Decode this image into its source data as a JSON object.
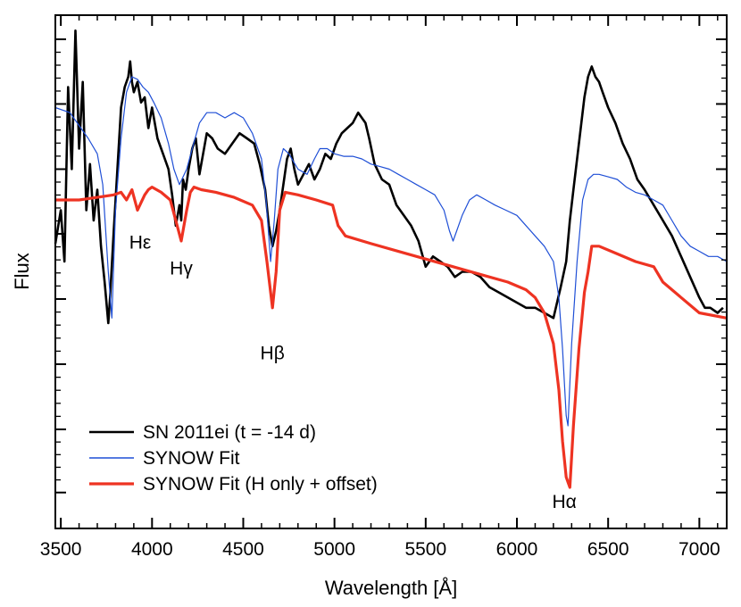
{
  "chart_data": {
    "type": "line",
    "xlabel": "Wavelength [Å]",
    "ylabel": "Flux",
    "xlim": [
      3470,
      7150
    ],
    "ylim": [
      0,
      1
    ],
    "xticks": [
      3500,
      4000,
      4500,
      5000,
      5500,
      6000,
      6500,
      7000
    ],
    "xtick_labels": [
      "3500",
      "4000",
      "4500",
      "5000",
      "5500",
      "6000",
      "6500",
      "7000"
    ],
    "yticks": [
      0.07,
      0.193,
      0.32,
      0.447,
      0.574,
      0.7,
      0.827,
      0.953
    ],
    "legend_position": "bottom-left",
    "series": [
      {
        "name": "SN 2011ei (t = -14 d)",
        "color": "#000000",
        "x": [
          3470,
          3500,
          3520,
          3540,
          3560,
          3580,
          3600,
          3620,
          3640,
          3660,
          3680,
          3700,
          3720,
          3740,
          3760,
          3770,
          3790,
          3810,
          3830,
          3850,
          3870,
          3880,
          3890,
          3900,
          3920,
          3940,
          3960,
          3980,
          4000,
          4030,
          4060,
          4090,
          4110,
          4130,
          4150,
          4160,
          4170,
          4185,
          4200,
          4220,
          4240,
          4260,
          4280,
          4300,
          4330,
          4360,
          4400,
          4440,
          4480,
          4520,
          4560,
          4590,
          4620,
          4640,
          4660,
          4680,
          4700,
          4720,
          4740,
          4760,
          4780,
          4800,
          4830,
          4860,
          4890,
          4920,
          4950,
          4980,
          5010,
          5040,
          5070,
          5100,
          5130,
          5150,
          5170,
          5190,
          5220,
          5260,
          5300,
          5340,
          5380,
          5420,
          5460,
          5500,
          5540,
          5580,
          5620,
          5660,
          5700,
          5750,
          5800,
          5850,
          5900,
          5950,
          6000,
          6050,
          6100,
          6150,
          6200,
          6240,
          6270,
          6290,
          6310,
          6330,
          6350,
          6370,
          6390,
          6410,
          6430,
          6450,
          6470,
          6500,
          6540,
          6580,
          6620,
          6660,
          6700,
          6750,
          6800,
          6850,
          6900,
          6950,
          7000,
          7030,
          7060,
          7100,
          7130
        ],
        "y": [
          0.555,
          0.62,
          0.52,
          0.86,
          0.7,
          0.97,
          0.74,
          0.87,
          0.62,
          0.71,
          0.6,
          0.66,
          0.55,
          0.48,
          0.4,
          0.45,
          0.58,
          0.7,
          0.82,
          0.86,
          0.88,
          0.91,
          0.87,
          0.85,
          0.87,
          0.83,
          0.84,
          0.78,
          0.82,
          0.76,
          0.73,
          0.7,
          0.65,
          0.59,
          0.63,
          0.6,
          0.68,
          0.66,
          0.7,
          0.74,
          0.76,
          0.69,
          0.73,
          0.77,
          0.76,
          0.74,
          0.73,
          0.75,
          0.77,
          0.76,
          0.75,
          0.71,
          0.66,
          0.59,
          0.55,
          0.58,
          0.62,
          0.67,
          0.72,
          0.74,
          0.7,
          0.67,
          0.69,
          0.71,
          0.68,
          0.7,
          0.73,
          0.72,
          0.75,
          0.77,
          0.78,
          0.79,
          0.81,
          0.8,
          0.79,
          0.76,
          0.71,
          0.68,
          0.67,
          0.63,
          0.61,
          0.59,
          0.56,
          0.51,
          0.53,
          0.52,
          0.51,
          0.49,
          0.5,
          0.5,
          0.49,
          0.47,
          0.46,
          0.45,
          0.44,
          0.43,
          0.43,
          0.42,
          0.41,
          0.47,
          0.52,
          0.6,
          0.66,
          0.72,
          0.78,
          0.84,
          0.88,
          0.9,
          0.88,
          0.87,
          0.85,
          0.82,
          0.79,
          0.75,
          0.72,
          0.68,
          0.66,
          0.63,
          0.6,
          0.57,
          0.53,
          0.49,
          0.45,
          0.43,
          0.43,
          0.42,
          0.43
        ]
      },
      {
        "name": "SYNOW Fit",
        "color": "#1f4fd6",
        "x": [
          3470,
          3550,
          3650,
          3700,
          3730,
          3760,
          3780,
          3800,
          3830,
          3860,
          3890,
          3920,
          3950,
          3980,
          4010,
          4050,
          4090,
          4120,
          4150,
          4190,
          4220,
          4260,
          4300,
          4350,
          4400,
          4450,
          4500,
          4550,
          4600,
          4625,
          4650,
          4670,
          4690,
          4720,
          4750,
          4800,
          4850,
          4890,
          4920,
          4960,
          5000,
          5050,
          5100,
          5150,
          5200,
          5250,
          5300,
          5350,
          5400,
          5450,
          5500,
          5550,
          5600,
          5630,
          5650,
          5670,
          5700,
          5740,
          5780,
          5830,
          5880,
          5940,
          6000,
          6050,
          6100,
          6150,
          6200,
          6230,
          6250,
          6270,
          6280,
          6300,
          6330,
          6360,
          6390,
          6420,
          6450,
          6500,
          6550,
          6600,
          6650,
          6700,
          6750,
          6800,
          6850,
          6900,
          6950,
          7000,
          7050,
          7100,
          7150
        ],
        "y": [
          0.82,
          0.81,
          0.76,
          0.73,
          0.67,
          0.5,
          0.41,
          0.62,
          0.76,
          0.85,
          0.88,
          0.875,
          0.86,
          0.85,
          0.83,
          0.8,
          0.75,
          0.7,
          0.67,
          0.7,
          0.74,
          0.79,
          0.81,
          0.81,
          0.8,
          0.81,
          0.8,
          0.77,
          0.72,
          0.64,
          0.52,
          0.6,
          0.7,
          0.74,
          0.73,
          0.7,
          0.69,
          0.72,
          0.74,
          0.74,
          0.73,
          0.725,
          0.725,
          0.72,
          0.71,
          0.705,
          0.7,
          0.69,
          0.68,
          0.67,
          0.66,
          0.65,
          0.62,
          0.58,
          0.56,
          0.58,
          0.61,
          0.64,
          0.65,
          0.64,
          0.63,
          0.62,
          0.61,
          0.59,
          0.57,
          0.55,
          0.52,
          0.45,
          0.35,
          0.22,
          0.2,
          0.36,
          0.52,
          0.64,
          0.68,
          0.69,
          0.69,
          0.685,
          0.68,
          0.665,
          0.655,
          0.65,
          0.64,
          0.63,
          0.6,
          0.57,
          0.55,
          0.54,
          0.53,
          0.53,
          0.52
        ]
      },
      {
        "name": "SYNOW Fit (H only + offset)",
        "color": "#ee3322",
        "x": [
          3470,
          3600,
          3700,
          3790,
          3830,
          3860,
          3890,
          3920,
          3940,
          3960,
          3980,
          4000,
          4050,
          4100,
          4130,
          4160,
          4190,
          4210,
          4230,
          4270,
          4350,
          4450,
          4550,
          4600,
          4630,
          4660,
          4680,
          4700,
          4730,
          4800,
          4900,
          4990,
          5020,
          5060,
          5200,
          5400,
          5600,
          5800,
          5950,
          6050,
          6100,
          6150,
          6200,
          6230,
          6250,
          6270,
          6290,
          6310,
          6340,
          6370,
          6390,
          6410,
          6450,
          6550,
          6650,
          6750,
          6800,
          6900,
          7000,
          7150
        ],
        "y": [
          0.64,
          0.64,
          0.645,
          0.65,
          0.655,
          0.64,
          0.66,
          0.62,
          0.635,
          0.65,
          0.66,
          0.665,
          0.655,
          0.64,
          0.6,
          0.56,
          0.62,
          0.655,
          0.665,
          0.66,
          0.655,
          0.645,
          0.63,
          0.6,
          0.52,
          0.43,
          0.5,
          0.62,
          0.655,
          0.65,
          0.64,
          0.63,
          0.59,
          0.57,
          0.555,
          0.535,
          0.515,
          0.495,
          0.48,
          0.465,
          0.45,
          0.42,
          0.36,
          0.27,
          0.17,
          0.1,
          0.08,
          0.2,
          0.35,
          0.46,
          0.5,
          0.55,
          0.55,
          0.535,
          0.52,
          0.51,
          0.48,
          0.45,
          0.42,
          0.41
        ]
      }
    ],
    "annotations": [
      {
        "text": "Hε",
        "x": 3935,
        "y": 0.545
      },
      {
        "text": "Hγ",
        "x": 4160,
        "y": 0.495
      },
      {
        "text": "Hβ",
        "x": 4660,
        "y": 0.33
      },
      {
        "text": "Hα",
        "x": 6260,
        "y": 0.04
      }
    ]
  }
}
